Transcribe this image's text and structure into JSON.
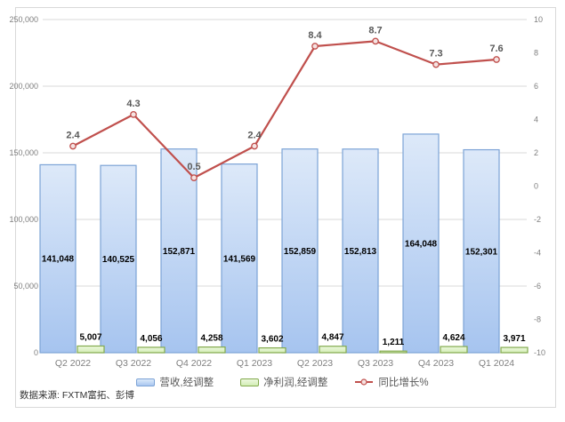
{
  "source_note": "数据来源: FXTM富拓、彭博",
  "colors": {
    "revenue_fill_top": "#dde9f9",
    "revenue_fill_bottom": "#a6c4ef",
    "revenue_border": "#7ca3d6",
    "profit_fill_top": "#ecf8de",
    "profit_fill_bottom": "#d3edb5",
    "profit_border": "#83aa4d",
    "growth_line": "#c0504d",
    "growth_marker_fill": "#f5e3e2",
    "gridline": "#d9d9d9",
    "axis_line": "#bfbfbf",
    "axis_label": "#7f7f7f",
    "bar_label": "#000000",
    "line_label": "#595959",
    "frame_border": "#d9d9d9"
  },
  "chart_data": {
    "type": "combo-bar-line",
    "title": "",
    "grid": true,
    "legend_position": "bottom",
    "categories": [
      "Q2 2022",
      "Q3 2022",
      "Q4 2022",
      "Q1 2023",
      "Q2 2023",
      "Q3 2023",
      "Q4 2023",
      "Q1 2024"
    ],
    "series": [
      {
        "name": "营收,经调整",
        "type": "bar",
        "axis": "left",
        "values": [
          141048,
          140525,
          152871,
          141569,
          152859,
          152813,
          164048,
          152301
        ],
        "labels": [
          "141,048",
          "140,525",
          "152,871",
          "141,569",
          "152,859",
          "152,813",
          "164,048",
          "152,301"
        ]
      },
      {
        "name": "净利润,经调整",
        "type": "bar",
        "axis": "left",
        "values": [
          5007,
          4056,
          4258,
          3602,
          4847,
          1211,
          4624,
          3971
        ],
        "labels": [
          "5,007",
          "4,056",
          "4,258",
          "3,602",
          "4,847",
          "1,211",
          "4,624",
          "3,971"
        ]
      },
      {
        "name": "同比增长%",
        "type": "line",
        "axis": "right",
        "values": [
          2.4,
          4.3,
          0.5,
          2.4,
          8.4,
          8.7,
          7.3,
          7.6
        ],
        "labels": [
          "2.4",
          "4.3",
          "0.5",
          "2.4",
          "8.4",
          "8.7",
          "7.3",
          "7.6"
        ]
      }
    ],
    "left_axis": {
      "min": 0,
      "max": 250000,
      "step": 50000,
      "tick_labels": [
        "250,000",
        "200,000",
        "150,000",
        "100,000",
        "50,000",
        "0"
      ]
    },
    "right_axis": {
      "min": -10,
      "max": 10,
      "step": 2,
      "tick_labels": [
        "10",
        "8",
        "6",
        "4",
        "2",
        "0",
        "-2",
        "-4",
        "-6",
        "-8",
        "-10"
      ]
    }
  }
}
